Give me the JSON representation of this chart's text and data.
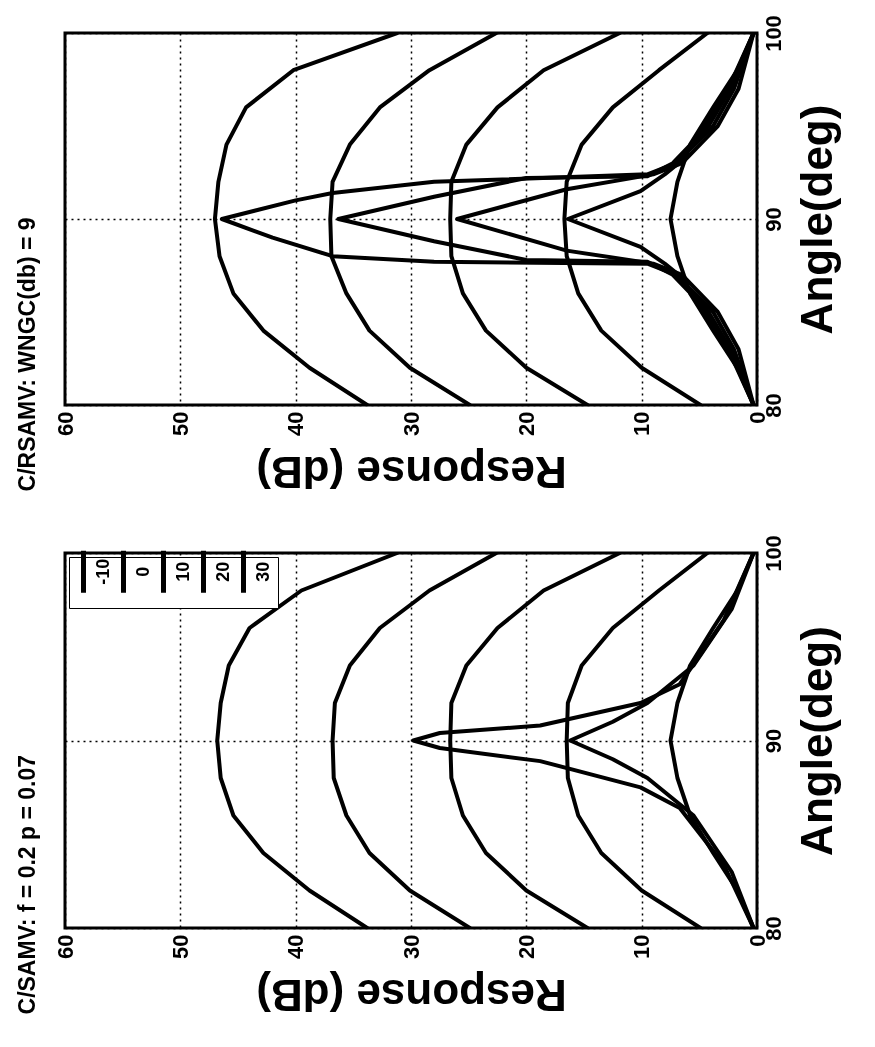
{
  "chart_data": [
    {
      "type": "line",
      "title": "C/RSAMV: WNGC(db) = 9",
      "xlabel": "Response (dB)",
      "ylabel": "Angle(deg)",
      "xlim": [
        60,
        0
      ],
      "ylim": [
        80,
        100
      ],
      "xticks": [
        60,
        50,
        40,
        30,
        20,
        10,
        0
      ],
      "yticks": [
        80,
        90,
        100
      ],
      "grid": true,
      "series": [
        {
          "color": "#000000",
          "x": [
            0.3,
            1.7,
            3.8,
            5.8,
            6.9,
            7.5,
            6.9,
            5.8,
            3.8,
            1.7,
            0.3
          ],
          "values": [
            80,
            82,
            84,
            86,
            88,
            90,
            92,
            94,
            96,
            98,
            100
          ]
        },
        {
          "color": "#000000",
          "x": [
            4.9,
            10,
            13.5,
            15.5,
            16.5,
            16.7,
            16.5,
            15.2,
            12.5,
            8.5,
            4.3
          ],
          "values": [
            80,
            82,
            84,
            86,
            88,
            90,
            92,
            94,
            96,
            98,
            100
          ]
        },
        {
          "color": "#000000",
          "x": [
            14.7,
            20,
            23.5,
            25.5,
            26.5,
            26.6,
            26.5,
            25.2,
            22.5,
            18.5,
            11.9
          ],
          "values": [
            80,
            82,
            84,
            86,
            88,
            90,
            92,
            94,
            96,
            98,
            100
          ]
        },
        {
          "color": "#000000",
          "x": [
            24.9,
            30.1,
            33.6,
            35.6,
            36.9,
            37.0,
            36.8,
            35.3,
            32.7,
            28.4,
            22.6
          ],
          "values": [
            80,
            82,
            84,
            86,
            88,
            90,
            92,
            94,
            96,
            98,
            100
          ]
        },
        {
          "color": "#000000",
          "x": [
            33.8,
            38.8,
            42.8,
            45.4,
            46.6,
            47.0,
            46.7,
            46.0,
            44.3,
            40.2,
            31.2
          ],
          "values": [
            80,
            82,
            84,
            86,
            88,
            90,
            92,
            94,
            96,
            98,
            100
          ]
        },
        {
          "color": "#000000",
          "x": [
            0.3,
            2,
            3.8,
            7,
            9.5,
            28,
            36.8,
            42,
            46.4,
            40,
            36.8,
            28,
            9.5,
            7,
            3.8,
            2,
            0.3
          ],
          "values": [
            80,
            83,
            85,
            87,
            87.6,
            87.7,
            88,
            89,
            90,
            91,
            91.4,
            92,
            92.4,
            93,
            95,
            97,
            100
          ]
        },
        {
          "color": "#000000",
          "x": [
            0.3,
            2.3,
            4.2,
            7.3,
            9.5,
            20,
            28,
            36.3,
            28,
            20,
            9.5,
            7.3,
            4.2,
            2.3,
            0.3
          ],
          "values": [
            80,
            83,
            85,
            87,
            87.7,
            87.8,
            88.8,
            90,
            91.2,
            92.2,
            92.3,
            93,
            95,
            97,
            100
          ]
        },
        {
          "color": "#000000",
          "x": [
            0.3,
            1.6,
            3.4,
            6.5,
            9.0,
            16.5,
            26,
            16.5,
            9.0,
            6.5,
            3.4,
            1.6,
            0.3
          ],
          "values": [
            80,
            83,
            85,
            87,
            87.6,
            88.3,
            90,
            91.6,
            92.4,
            93,
            95,
            97,
            100
          ]
        },
        {
          "color": "#000000",
          "x": [
            0.3,
            2.5,
            4.5,
            6.8,
            8,
            10.1,
            16.4,
            10.1,
            8,
            6.8,
            4.5,
            2.5,
            0.3
          ],
          "values": [
            80,
            83,
            85,
            87,
            87.6,
            88.5,
            90,
            91.5,
            92.4,
            93,
            95,
            97,
            100
          ]
        }
      ]
    },
    {
      "type": "line",
      "title": "C/SAMV: f = 0.2 p = 0.07",
      "xlabel": "Response (dB)",
      "ylabel": "Angle(deg)",
      "xlim": [
        60,
        0
      ],
      "ylim": [
        80,
        100
      ],
      "xticks": [
        60,
        50,
        40,
        30,
        20,
        10,
        0
      ],
      "yticks": [
        80,
        90,
        100
      ],
      "grid": true,
      "legend": "top left",
      "series": [
        {
          "name": "-10",
          "color": "#000000",
          "x": [
            0.3,
            1.7,
            3.8,
            5.8,
            6.9,
            7.5,
            6.9,
            5.8,
            3.8,
            1.7,
            0.3
          ],
          "values": [
            80,
            82,
            84,
            86,
            88,
            90,
            92,
            94,
            96,
            98,
            100
          ]
        },
        {
          "name": "0",
          "color": "#000000",
          "x": [
            4.9,
            10,
            13.5,
            15.5,
            16.4,
            16.5,
            16.4,
            15.2,
            12.5,
            8.5,
            4.3
          ],
          "values": [
            80,
            82,
            84,
            86,
            88,
            90,
            92,
            94,
            96,
            98,
            100
          ]
        },
        {
          "name": "10",
          "color": "#000000",
          "x": [
            14.7,
            20,
            23.5,
            25.5,
            26.5,
            26.6,
            26.5,
            25.2,
            22.5,
            18.5,
            11.9
          ],
          "values": [
            80,
            82,
            84,
            86,
            88,
            90,
            92,
            94,
            96,
            98,
            100
          ]
        },
        {
          "name": "20",
          "color": "#000000",
          "x": [
            24.9,
            30.1,
            33.6,
            35.6,
            36.7,
            36.8,
            36.6,
            35.3,
            32.7,
            28.4,
            22.6
          ],
          "values": [
            80,
            82,
            84,
            86,
            88,
            90,
            92,
            94,
            96,
            98,
            100
          ]
        },
        {
          "name": "30",
          "color": "#000000",
          "x": [
            33.8,
            38.8,
            42.8,
            45.4,
            46.5,
            46.8,
            46.5,
            45.8,
            44.0,
            39.5,
            31.2
          ],
          "values": [
            80,
            82,
            84,
            86,
            88,
            90,
            92,
            94,
            96,
            98,
            100
          ]
        },
        {
          "color": "#000000",
          "x": [
            0.3,
            2.9,
            6.7,
            10.1,
            18.8,
            27.5,
            29.8,
            27.5,
            18.8,
            10.1,
            6.7,
            2.9,
            0.3
          ],
          "values": [
            80,
            83.4,
            86.4,
            87.5,
            88.9,
            89.6,
            90,
            90.4,
            90.8,
            92,
            93,
            96.4,
            100
          ]
        },
        {
          "color": "#000000",
          "x": [
            0.3,
            2.2,
            5.5,
            9.5,
            12.5,
            16.2,
            12.5,
            9.5,
            5.5,
            2.2,
            0.3
          ],
          "values": [
            80,
            83,
            86,
            88,
            89,
            90,
            91,
            92,
            94,
            97,
            100
          ]
        }
      ]
    }
  ]
}
